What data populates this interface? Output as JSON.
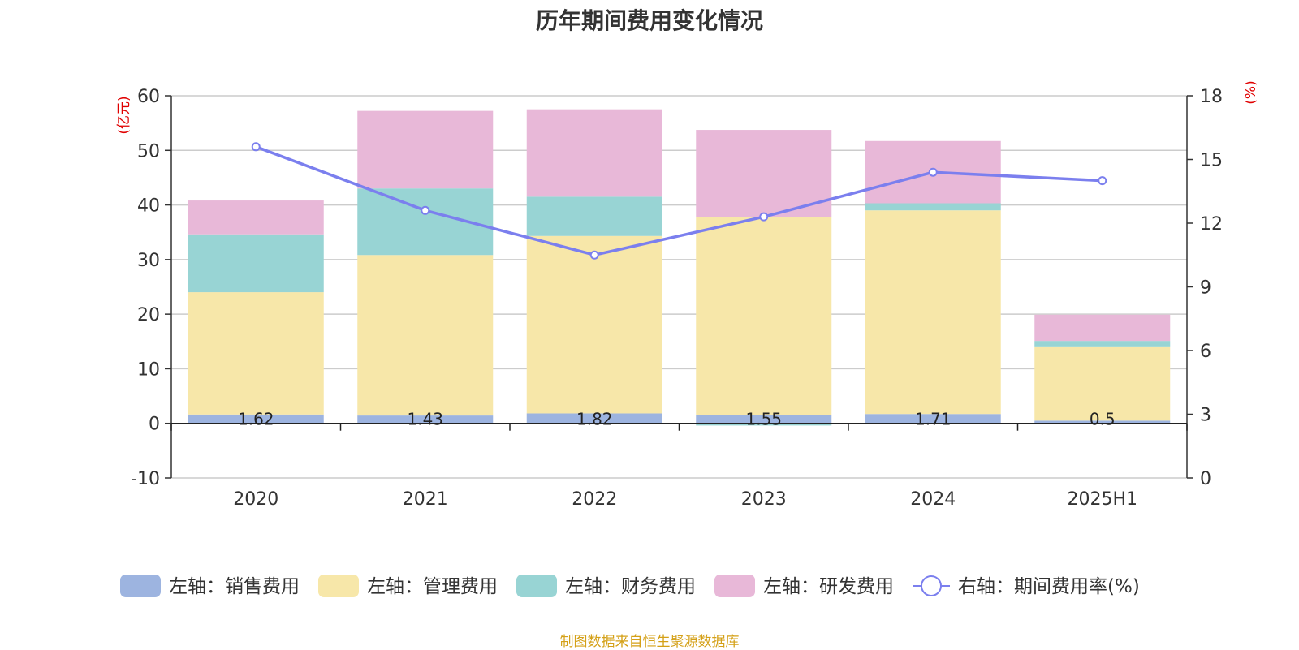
{
  "chart_data": {
    "type": "bar",
    "title": "历年期间费用变化情况",
    "categories": [
      "2020",
      "2021",
      "2022",
      "2023",
      "2024",
      "2025H1"
    ],
    "left_axis": {
      "unit": "(亿元)",
      "ylim": [
        -10,
        60
      ],
      "ticks": [
        -10,
        0,
        10,
        20,
        30,
        40,
        50,
        60
      ]
    },
    "right_axis": {
      "unit": "(%)",
      "ylim": [
        0,
        18
      ],
      "ticks": [
        0,
        3,
        6,
        9,
        12,
        15,
        18
      ]
    },
    "series": [
      {
        "name": "左轴：销售费用",
        "type": "bar",
        "stack": "left",
        "axis": "left",
        "color": "#9db4e0",
        "values": [
          1.62,
          1.43,
          1.82,
          1.55,
          1.71,
          0.5
        ],
        "labels": [
          "1.62",
          "1.43",
          "1.82",
          "1.55",
          "1.71",
          "0.5"
        ]
      },
      {
        "name": "左轴：管理费用",
        "type": "bar",
        "stack": "left",
        "axis": "left",
        "color": "#f7e7a9",
        "values": [
          22.4,
          29.4,
          32.5,
          36.2,
          37.3,
          13.6
        ]
      },
      {
        "name": "左轴：财务费用",
        "type": "bar",
        "stack": "left",
        "axis": "left",
        "color": "#98d4d4",
        "values": [
          10.6,
          12.2,
          7.2,
          -0.4,
          1.3,
          1.0
        ]
      },
      {
        "name": "左轴：研发费用",
        "type": "bar",
        "stack": "left",
        "axis": "left",
        "color": "#e8b8d8",
        "values": [
          6.2,
          14.2,
          16.0,
          16.0,
          11.4,
          4.8
        ]
      },
      {
        "name": "右轴：期间费用率(%)",
        "type": "line",
        "axis": "right",
        "color": "#7b7fee",
        "values": [
          15.6,
          12.6,
          10.5,
          12.3,
          14.4,
          14.0
        ]
      }
    ],
    "grid": true,
    "legend_position": "bottom"
  },
  "source": "制图数据来自恒生聚源数据库"
}
